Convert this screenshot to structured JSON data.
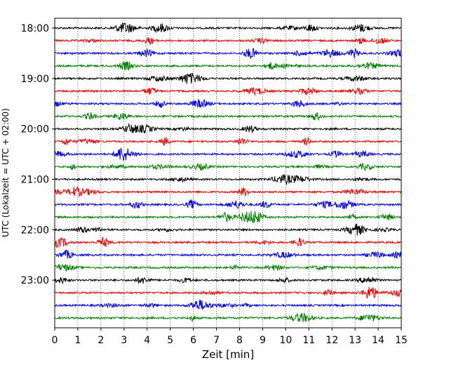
{
  "chart_data": {
    "type": "line",
    "title": "",
    "xlabel": "Zeit  [min]",
    "ylabel": "UTC (Lokalzeit = UTC + 02:00)",
    "xlim": [
      0,
      15
    ],
    "x_ticks": [
      "0",
      "1",
      "2",
      "3",
      "4",
      "5",
      "6",
      "7",
      "8",
      "9",
      "10",
      "11",
      "12",
      "13",
      "14",
      "15"
    ],
    "y_ticks": [
      {
        "trace_index": 0,
        "label": "18:00"
      },
      {
        "trace_index": 4,
        "label": "19:00"
      },
      {
        "trace_index": 8,
        "label": "20:00"
      },
      {
        "trace_index": 12,
        "label": "21:00"
      },
      {
        "trace_index": 16,
        "label": "22:00"
      },
      {
        "trace_index": 20,
        "label": "23:00"
      }
    ],
    "grid": "vertical dotted at each minute",
    "trace_count": 24,
    "trace_interval_min": 15,
    "colors": [
      "#000000",
      "#ff0000",
      "#0000ff",
      "#008000"
    ]
  }
}
